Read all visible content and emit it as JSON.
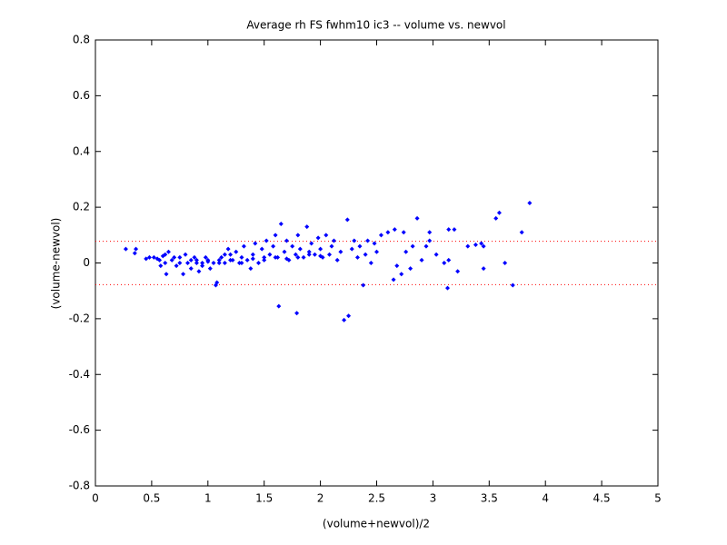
{
  "chart_data": {
    "type": "scatter",
    "title": "Average rh FS fwhm10 ic3 -- volume vs. newvol",
    "xlabel": "(volume+newvol)/2",
    "ylabel": "(volume-newvol)",
    "color": "#0000ff",
    "reference_line_color": "#ff0000",
    "reference_lines": [
      0.078,
      -0.078
    ],
    "xlim": [
      0,
      5
    ],
    "xticks": [
      0,
      0.5,
      1,
      1.5,
      2,
      2.5,
      3,
      3.5,
      4,
      4.5,
      5
    ],
    "ylim": [
      -0.8,
      0.8
    ],
    "yticks": [
      -0.8,
      -0.6,
      -0.4,
      -0.2,
      0,
      0.2,
      0.4,
      0.6,
      0.8
    ],
    "grid": false,
    "x": [
      0.27,
      0.35,
      0.36,
      0.45,
      0.48,
      0.52,
      0.55,
      0.57,
      0.6,
      0.62,
      0.63,
      0.65,
      0.58,
      0.62,
      0.68,
      0.7,
      0.72,
      0.75,
      0.78,
      0.8,
      0.82,
      0.85,
      0.88,
      0.9,
      0.92,
      0.95,
      0.98,
      1.0,
      1.02,
      1.05,
      1.07,
      1.08,
      1.1,
      1.12,
      1.15,
      1.18,
      1.2,
      1.22,
      1.25,
      1.28,
      1.3,
      1.32,
      1.35,
      1.38,
      1.4,
      1.42,
      1.45,
      1.48,
      1.5,
      1.52,
      1.55,
      1.58,
      1.6,
      1.62,
      1.63,
      1.65,
      1.68,
      1.7,
      1.72,
      1.75,
      1.78,
      1.79,
      1.8,
      1.82,
      1.85,
      1.88,
      1.9,
      1.92,
      1.95,
      1.98,
      2.0,
      2.02,
      2.05,
      2.08,
      2.1,
      2.12,
      2.15,
      2.18,
      2.21,
      2.24,
      2.25,
      2.28,
      2.3,
      2.33,
      2.35,
      2.38,
      2.4,
      2.42,
      2.45,
      2.48,
      2.5,
      2.54,
      2.6,
      2.65,
      2.66,
      2.68,
      2.72,
      2.74,
      2.76,
      2.8,
      2.82,
      2.86,
      2.9,
      2.94,
      2.97,
      2.97,
      3.03,
      3.1,
      3.13,
      3.14,
      3.14,
      3.19,
      3.22,
      3.31,
      3.38,
      3.43,
      3.45,
      3.45,
      3.56,
      3.59,
      3.64,
      3.71,
      3.79,
      3.86,
      0.9,
      1.0,
      1.1,
      1.2,
      1.3,
      1.4,
      1.5,
      1.6,
      1.7,
      1.8,
      1.9,
      2.0,
      0.75,
      0.85,
      0.95,
      1.15
    ],
    "values": [
      0.05,
      0.035,
      0.05,
      0.015,
      0.02,
      0.02,
      0.015,
      0.01,
      0.025,
      0.03,
      -0.04,
      0.04,
      -0.01,
      0.0,
      0.01,
      0.02,
      -0.01,
      0.0,
      -0.04,
      0.03,
      0.0,
      -0.02,
      0.02,
      0.01,
      -0.03,
      0.0,
      0.02,
      0.01,
      -0.02,
      0.0,
      -0.08,
      -0.07,
      0.01,
      0.02,
      0.0,
      0.05,
      0.03,
      0.01,
      0.04,
      0.0,
      0.02,
      0.06,
      0.01,
      -0.02,
      0.03,
      0.07,
      0.0,
      0.05,
      0.02,
      0.08,
      0.03,
      0.06,
      0.1,
      0.02,
      -0.155,
      0.14,
      0.04,
      0.08,
      0.01,
      0.06,
      0.03,
      -0.18,
      0.1,
      0.05,
      0.02,
      0.13,
      0.04,
      0.07,
      0.03,
      0.09,
      0.05,
      0.02,
      0.1,
      0.03,
      0.06,
      0.08,
      0.01,
      0.04,
      -0.205,
      0.155,
      -0.19,
      0.05,
      0.08,
      0.02,
      0.06,
      -0.08,
      0.03,
      0.08,
      0.0,
      0.07,
      0.04,
      0.1,
      0.11,
      -0.06,
      0.12,
      -0.01,
      -0.04,
      0.11,
      0.04,
      -0.02,
      0.06,
      0.16,
      0.01,
      0.06,
      0.08,
      0.11,
      0.03,
      0.0,
      -0.09,
      0.12,
      0.01,
      0.12,
      -0.03,
      0.06,
      0.065,
      0.07,
      0.06,
      -0.02,
      0.16,
      0.18,
      0.0,
      -0.08,
      0.11,
      0.215,
      0.0,
      0.005,
      0.0,
      0.01,
      0.0,
      0.015,
      0.01,
      0.02,
      0.015,
      0.02,
      0.03,
      0.025,
      0.02,
      0.01,
      -0.01,
      0.03
    ]
  }
}
